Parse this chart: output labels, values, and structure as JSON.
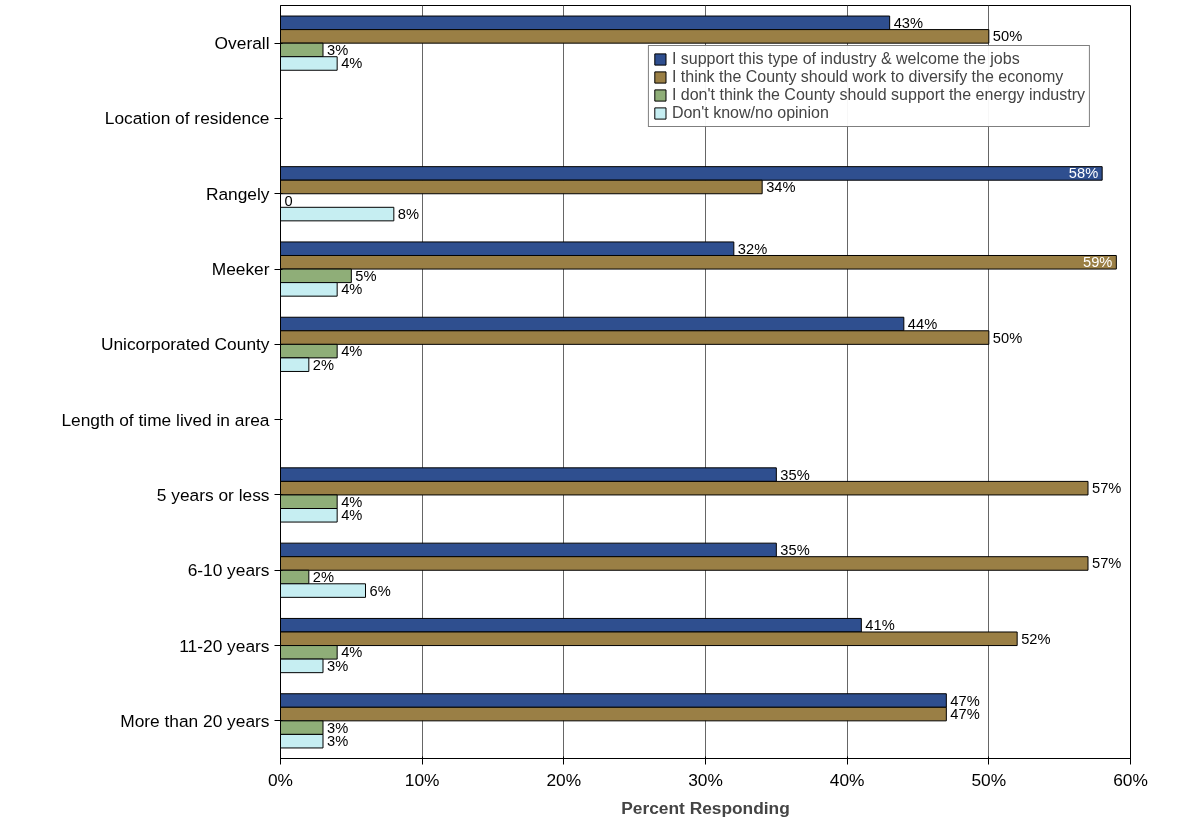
{
  "chart_data": {
    "type": "bar",
    "orientation": "horizontal",
    "xlabel": "Percent Responding",
    "categories": [
      "Overall",
      "Location of residence",
      "Rangely",
      "Meeker",
      "Unicorporated County",
      "Length of time lived in area",
      "5 years or less",
      "6-10 years",
      "11-20 years",
      "More than 20 years"
    ],
    "series": [
      {
        "name": "I support this type of industry & welcome the jobs",
        "color": "#2f4f8f",
        "values": [
          43,
          null,
          58,
          32,
          44,
          null,
          35,
          35,
          41,
          47
        ],
        "value_labels": [
          "43%",
          null,
          "58%",
          "32%",
          "44%",
          null,
          "35%",
          "35%",
          "41%",
          "47%"
        ]
      },
      {
        "name": "I think the County should work to diversify the economy",
        "color": "#9a7f45",
        "values": [
          50,
          null,
          34,
          59,
          50,
          null,
          57,
          57,
          52,
          47
        ],
        "value_labels": [
          "50%",
          null,
          "34%",
          "59%",
          "50%",
          null,
          "57%",
          "57%",
          "52%",
          "47%"
        ]
      },
      {
        "name": "I don't think the County should support the energy industry",
        "color": "#8fae78",
        "values": [
          3,
          null,
          0,
          5,
          4,
          null,
          4,
          2,
          4,
          3
        ],
        "value_labels": [
          "3%",
          null,
          "0",
          "5%",
          "4%",
          null,
          "4%",
          "2%",
          "4%",
          "3%"
        ]
      },
      {
        "name": "Don't know/no opinion",
        "color": "#c6eef2",
        "values": [
          4,
          null,
          8,
          4,
          2,
          null,
          4,
          6,
          3,
          3
        ],
        "value_labels": [
          "4%",
          null,
          "8%",
          "4%",
          "2%",
          null,
          "4%",
          "6%",
          "3%",
          "3%"
        ]
      }
    ],
    "xlim": [
      0,
      60
    ],
    "xticks": [
      {
        "value": 0,
        "label": "0%"
      },
      {
        "value": 10,
        "label": "10%"
      },
      {
        "value": 20,
        "label": "20%"
      },
      {
        "value": 30,
        "label": "30%"
      },
      {
        "value": 40,
        "label": "40%"
      },
      {
        "value": 50,
        "label": "50%"
      },
      {
        "value": 60,
        "label": "60%"
      }
    ],
    "grid": "x",
    "legend": "top right"
  }
}
